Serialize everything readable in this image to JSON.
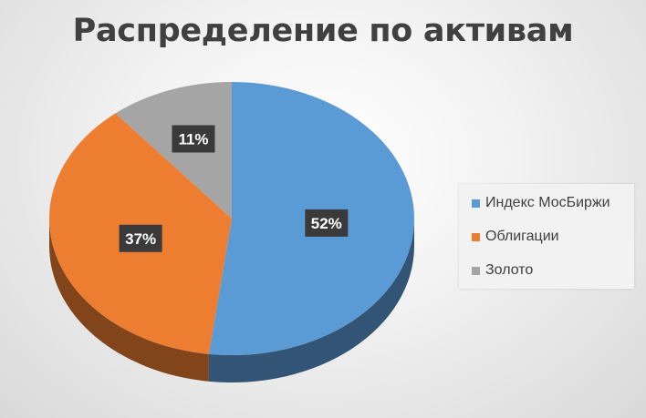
{
  "chart_data": {
    "type": "pie",
    "title": "Распределение по активам",
    "categories": [
      "Индекс МосБиржи",
      "Облигации",
      "Золото"
    ],
    "values": [
      52,
      37,
      11
    ],
    "labels": [
      "52%",
      "37%",
      "11%"
    ],
    "colors": [
      "#5b9bd5",
      "#ed7d31",
      "#a5a5a5"
    ],
    "style": "3d",
    "legend_position": "right"
  }
}
